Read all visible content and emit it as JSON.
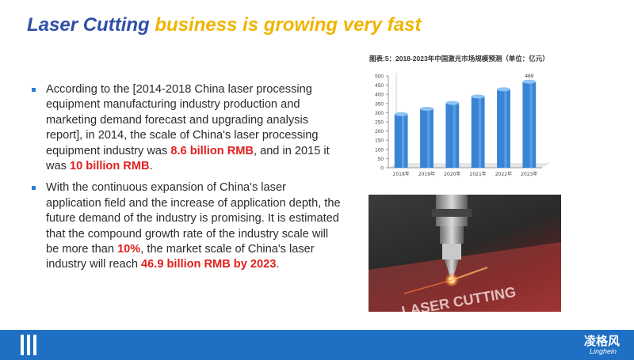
{
  "title": {
    "part1": "Laser Cutting",
    "part2": " business is growing very fast"
  },
  "bullets": [
    {
      "t1": "According to the [2014-2018 China laser processing equipment manufacturing industry production and marketing demand forecast and upgrading analysis report], in 2014, the scale of China's laser processing equipment industry was ",
      "h1": "8.6 billion RMB",
      "t2": ", and in 2015 it was ",
      "h2": "10 billion RMB",
      "t3": "."
    },
    {
      "t1": "With the continuous expansion of China's laser application field and the increase of application depth, the future demand of the industry is promising. It is estimated that the compound growth rate of the industry scale will be more than ",
      "h1": "10%",
      "t2": ", the market scale of China's laser industry will reach ",
      "h2": "46.9 billion RMB by 2023",
      "t3": "."
    }
  ],
  "chart_data": {
    "type": "bar",
    "title": "图表:5：2018-2023年中国激光市场规模预测（单位：亿元）",
    "categories": [
      "2018年",
      "2019年",
      "2020年",
      "2021年",
      "2022年",
      "2023年"
    ],
    "values": [
      292,
      321,
      353,
      388,
      427,
      469
    ],
    "data_labels": [
      "",
      "",
      "",
      "",
      "",
      "469"
    ],
    "yticks": [
      "0",
      "50",
      "100",
      "150",
      "200",
      "250",
      "300",
      "350",
      "400",
      "450",
      "500"
    ],
    "ylim": [
      0,
      500
    ],
    "bar_color": "#3a84d6",
    "xlabel": "",
    "ylabel": ""
  },
  "photo": {
    "text": "LASER CUTTING"
  },
  "footer": {
    "logo_cn": "凌格风",
    "logo_en": "Linghein"
  }
}
